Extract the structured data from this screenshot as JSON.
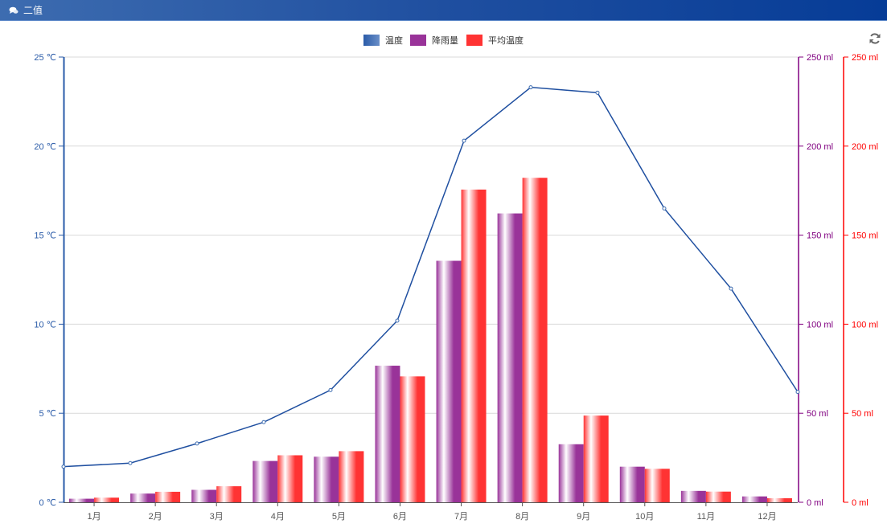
{
  "header": {
    "title": "二值",
    "icon": "comments-icon"
  },
  "toolbox": {
    "refresh_icon": "refresh-icon"
  },
  "colors": {
    "temperature": "#3d6cb0",
    "rainfall": "#993399",
    "avg_temp": "#ff3333",
    "header_start": "#3d6cb0",
    "header_end": "#063c97",
    "left_axis": "#2a5ba8",
    "right_axis_1": "#800080",
    "right_axis_2": "#ff0000"
  },
  "chart_data": {
    "type": "bar",
    "title": "二值",
    "categories": [
      "1月",
      "2月",
      "3月",
      "4月",
      "5月",
      "6月",
      "7月",
      "8月",
      "9月",
      "10月",
      "11月",
      "12月"
    ],
    "legend": [
      "温度",
      "降雨量",
      "平均温度"
    ],
    "legend_position": "top-center",
    "series": [
      {
        "name": "温度",
        "type": "line",
        "yAxis": "left",
        "values": [
          2.0,
          2.2,
          3.3,
          4.5,
          6.3,
          10.2,
          20.3,
          23.3,
          23.0,
          16.5,
          12.0,
          6.2
        ]
      },
      {
        "name": "降雨量",
        "type": "bar",
        "yAxis": "right-1",
        "values": [
          2.0,
          4.9,
          7.0,
          23.2,
          25.6,
          76.7,
          135.6,
          162.2,
          32.6,
          20.0,
          6.4,
          3.3
        ]
      },
      {
        "name": "平均温度",
        "type": "bar",
        "yAxis": "right-2",
        "values": [
          2.6,
          5.9,
          9.0,
          26.4,
          28.7,
          70.7,
          175.6,
          182.2,
          48.7,
          18.8,
          6.0,
          2.3
        ]
      }
    ],
    "y_axes": [
      {
        "position": "left",
        "min": 0,
        "max": 25,
        "ticks": [
          "0 ℃",
          "5 ℃",
          "10 ℃",
          "15 ℃",
          "20 ℃",
          "25 ℃"
        ],
        "tick_values": [
          0,
          5,
          10,
          15,
          20,
          25
        ]
      },
      {
        "position": "right",
        "min": 0,
        "max": 250,
        "ticks": [
          "0 ml",
          "50 ml",
          "100 ml",
          "150 ml",
          "200 ml",
          "250 ml"
        ],
        "tick_values": [
          0,
          50,
          100,
          150,
          200,
          250
        ]
      },
      {
        "position": "right-offset",
        "min": 0,
        "max": 250,
        "ticks": [
          "0 ml",
          "50 ml",
          "100 ml",
          "150 ml",
          "200 ml",
          "250 ml"
        ],
        "tick_values": [
          0,
          50,
          100,
          150,
          200,
          250
        ]
      }
    ],
    "xlabel": "",
    "ylabel": "",
    "grid": true
  }
}
